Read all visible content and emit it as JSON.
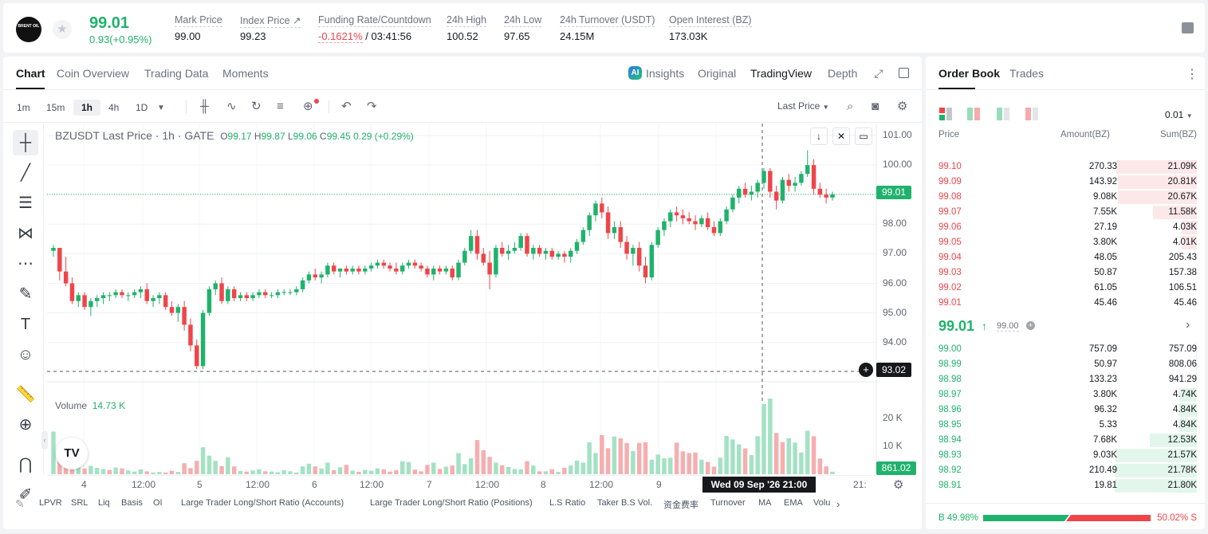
{
  "header": {
    "logo_text": "BRENT OIL",
    "price": "99.01",
    "change": "0.93(+0.95%)",
    "stats": [
      {
        "label": "Mark Price",
        "value": "99.00"
      },
      {
        "label": "Index Price ↗",
        "value": "99.23"
      },
      {
        "label": "Funding Rate/Countdown",
        "value_neg": "-0.1621%",
        "value": "/ 03:41:56"
      },
      {
        "label": "24h High",
        "value": "100.52"
      },
      {
        "label": "24h Low",
        "value": "97.65"
      },
      {
        "label": "24h Turnover (USDT)",
        "value": "24.15M"
      },
      {
        "label": "Open Interest (BZ)",
        "value": "173.03K"
      }
    ]
  },
  "chart_tabs": [
    "Chart",
    "Coin Overview",
    "Trading Data",
    "Moments"
  ],
  "view_tabs": {
    "insights": "Insights",
    "original": "Original",
    "tradingview": "TradingView",
    "depth": "Depth"
  },
  "timeframes": [
    "1m",
    "15m",
    "1h",
    "4h",
    "1D"
  ],
  "price_type": "Last Price",
  "legend": {
    "symbol": "BZUSDT Last Price · 1h · GATE",
    "o_label": "O",
    "o": "99.17",
    "h_label": "H",
    "h": "99.87",
    "l_label": "L",
    "l": "99.06",
    "c_label": "C",
    "c": "99.45",
    "chg": "0.29 (+0.29%)"
  },
  "volume_legend": {
    "label": "Volume",
    "value": "14.73 K"
  },
  "price_axis": [
    "101.00",
    "100.00",
    "99.00",
    "98.00",
    "97.00",
    "96.00",
    "95.00",
    "94.00"
  ],
  "volume_axis": [
    "20 K",
    "10 K"
  ],
  "last_price_tag": "99.01",
  "cross_price_tag": "93.02",
  "volume_tag": "861.02",
  "time_axis": [
    "4",
    "12:00",
    "5",
    "12:00",
    "6",
    "12:00",
    "7",
    "12:00",
    "8",
    "12:00",
    "9",
    "12:00",
    "21:"
  ],
  "cross_time": "Wed 09 Sep '26   21:00",
  "indicators": [
    "LPVR",
    "SRL",
    "Liq",
    "Basis",
    "OI",
    "Large Trader Long/Short Ratio (Accounts)",
    "Large Trader Long/Short Ratio (Positions)",
    "L.S Ratio",
    "Taker B.S Vol.",
    "资金费率",
    "Turnover",
    "MA",
    "EMA",
    "Volu"
  ],
  "orderbook": {
    "tabs": [
      "Order Book",
      "Trades"
    ],
    "tick_size": "0.01",
    "cols": [
      "Price",
      "Amount(BZ)",
      "Sum(BZ)"
    ],
    "asks": [
      {
        "p": "99.10",
        "a": "270.33",
        "s": "21.09K",
        "d": 0.97
      },
      {
        "p": "99.09",
        "a": "143.92",
        "s": "20.81K",
        "d": 0.955
      },
      {
        "p": "99.08",
        "a": "9.08K",
        "s": "20.67K",
        "d": 0.95
      },
      {
        "p": "99.07",
        "a": "7.55K",
        "s": "11.58K",
        "d": 0.53
      },
      {
        "p": "99.06",
        "a": "27.19",
        "s": "4.03K",
        "d": 0.185
      },
      {
        "p": "99.05",
        "a": "3.80K",
        "s": "4.01K",
        "d": 0.184
      },
      {
        "p": "99.04",
        "a": "48.05",
        "s": "205.43",
        "d": 0
      },
      {
        "p": "99.03",
        "a": "50.87",
        "s": "157.38",
        "d": 0
      },
      {
        "p": "99.02",
        "a": "61.05",
        "s": "106.51",
        "d": 0
      },
      {
        "p": "99.01",
        "a": "45.46",
        "s": "45.46",
        "d": 0
      }
    ],
    "mid_price": "99.01",
    "mid_mark": "99.00",
    "bids": [
      {
        "p": "99.00",
        "a": "757.09",
        "s": "757.09",
        "d": 0.01
      },
      {
        "p": "98.99",
        "a": "50.97",
        "s": "808.06",
        "d": 0.01
      },
      {
        "p": "98.98",
        "a": "133.23",
        "s": "941.29",
        "d": 0.01
      },
      {
        "p": "98.97",
        "a": "3.80K",
        "s": "4.74K",
        "d": 0.215
      },
      {
        "p": "98.96",
        "a": "96.32",
        "s": "4.84K",
        "d": 0.22
      },
      {
        "p": "98.95",
        "a": "5.33",
        "s": "4.84K",
        "d": 0.22
      },
      {
        "p": "98.94",
        "a": "7.68K",
        "s": "12.53K",
        "d": 0.57
      },
      {
        "p": "98.93",
        "a": "9.03K",
        "s": "21.57K",
        "d": 0.985
      },
      {
        "p": "98.92",
        "a": "210.49",
        "s": "21.78K",
        "d": 0.99
      },
      {
        "p": "98.91",
        "a": "19.81",
        "s": "21.80K",
        "d": 0.99
      }
    ],
    "buy_pct": "49.98%",
    "sell_pct": "50.02%",
    "buy_label": "B",
    "sell_label": "S",
    "buy_ratio": 0.4998
  },
  "colors": {
    "up": "#20b26c",
    "down": "#ef454a"
  },
  "chart_data": {
    "type": "candlestick",
    "ylim": [
      93.0,
      101.0
    ],
    "candles": [
      [
        97.1,
        97.3,
        96.9,
        97.2
      ],
      [
        97.2,
        97.2,
        96.1,
        96.4
      ],
      [
        96.4,
        96.9,
        95.9,
        96.0
      ],
      [
        96.0,
        96.2,
        95.3,
        95.4
      ],
      [
        95.4,
        95.7,
        95.2,
        95.6
      ],
      [
        95.6,
        95.7,
        95.1,
        95.2
      ],
      [
        95.2,
        95.5,
        94.9,
        95.4
      ],
      [
        95.4,
        95.6,
        95.2,
        95.5
      ],
      [
        95.5,
        95.7,
        95.3,
        95.6
      ],
      [
        95.6,
        95.7,
        95.4,
        95.6
      ],
      [
        95.6,
        95.8,
        95.5,
        95.7
      ],
      [
        95.7,
        95.8,
        95.5,
        95.6
      ],
      [
        95.6,
        95.7,
        95.4,
        95.6
      ],
      [
        95.6,
        95.8,
        95.5,
        95.7
      ],
      [
        95.7,
        95.9,
        95.5,
        95.8
      ],
      [
        95.8,
        96.0,
        95.3,
        95.4
      ],
      [
        95.4,
        95.6,
        95.2,
        95.5
      ],
      [
        95.5,
        95.7,
        95.3,
        95.6
      ],
      [
        95.6,
        95.7,
        95.1,
        95.2
      ],
      [
        95.2,
        95.4,
        94.9,
        95.0
      ],
      [
        95.0,
        95.3,
        94.7,
        95.2
      ],
      [
        95.2,
        95.4,
        94.4,
        94.6
      ],
      [
        94.6,
        94.8,
        93.7,
        93.9
      ],
      [
        93.9,
        94.1,
        93.1,
        93.2
      ],
      [
        93.2,
        95.1,
        93.1,
        95.0
      ],
      [
        95.0,
        95.9,
        94.9,
        95.8
      ],
      [
        95.8,
        96.1,
        95.6,
        96.0
      ],
      [
        96.0,
        96.2,
        95.3,
        95.4
      ],
      [
        95.4,
        95.9,
        95.3,
        95.8
      ],
      [
        95.8,
        95.9,
        95.4,
        95.5
      ],
      [
        95.5,
        95.7,
        95.4,
        95.6
      ],
      [
        95.6,
        95.7,
        95.4,
        95.5
      ],
      [
        95.5,
        95.7,
        95.4,
        95.6
      ],
      [
        95.6,
        95.8,
        95.5,
        95.7
      ],
      [
        95.7,
        95.8,
        95.5,
        95.6
      ],
      [
        95.6,
        95.7,
        95.5,
        95.6
      ],
      [
        95.6,
        95.8,
        95.5,
        95.7
      ],
      [
        95.7,
        95.8,
        95.6,
        95.7
      ],
      [
        95.7,
        95.8,
        95.6,
        95.7
      ],
      [
        95.7,
        95.9,
        95.6,
        95.8
      ],
      [
        95.8,
        96.2,
        95.7,
        96.1
      ],
      [
        96.1,
        96.4,
        96.0,
        96.3
      ],
      [
        96.3,
        96.5,
        96.1,
        96.2
      ],
      [
        96.2,
        96.4,
        96.0,
        96.3
      ],
      [
        96.3,
        96.7,
        96.2,
        96.6
      ],
      [
        96.6,
        96.7,
        96.3,
        96.4
      ],
      [
        96.4,
        96.5,
        96.2,
        96.5
      ],
      [
        96.5,
        96.6,
        96.3,
        96.4
      ],
      [
        96.4,
        96.6,
        96.3,
        96.5
      ],
      [
        96.5,
        96.6,
        96.3,
        96.4
      ],
      [
        96.4,
        96.6,
        96.3,
        96.5
      ],
      [
        96.5,
        96.7,
        96.4,
        96.6
      ],
      [
        96.6,
        96.8,
        96.5,
        96.7
      ],
      [
        96.7,
        96.8,
        96.5,
        96.6
      ],
      [
        96.6,
        96.7,
        96.4,
        96.5
      ],
      [
        96.5,
        96.7,
        96.3,
        96.4
      ],
      [
        96.4,
        96.7,
        96.3,
        96.6
      ],
      [
        96.6,
        96.8,
        96.5,
        96.7
      ],
      [
        96.7,
        96.8,
        96.5,
        96.6
      ],
      [
        96.6,
        96.7,
        96.4,
        96.5
      ],
      [
        96.5,
        96.6,
        96.2,
        96.3
      ],
      [
        96.3,
        96.6,
        96.1,
        96.5
      ],
      [
        96.5,
        96.6,
        96.3,
        96.4
      ],
      [
        96.4,
        96.6,
        96.3,
        96.5
      ],
      [
        96.5,
        96.6,
        96.1,
        96.2
      ],
      [
        96.2,
        96.8,
        96.1,
        96.7
      ],
      [
        96.7,
        97.2,
        96.6,
        97.1
      ],
      [
        97.1,
        97.8,
        97.0,
        97.6
      ],
      [
        97.6,
        97.8,
        96.8,
        97.0
      ],
      [
        97.0,
        97.2,
        96.6,
        96.7
      ],
      [
        96.7,
        97.1,
        95.8,
        96.3
      ],
      [
        96.3,
        97.3,
        96.2,
        97.2
      ],
      [
        97.2,
        97.4,
        96.9,
        97.0
      ],
      [
        97.0,
        97.3,
        96.8,
        97.1
      ],
      [
        97.1,
        97.4,
        97.0,
        97.2
      ],
      [
        97.2,
        97.7,
        97.1,
        97.6
      ],
      [
        97.6,
        97.7,
        96.9,
        97.0
      ],
      [
        97.0,
        97.3,
        96.8,
        97.2
      ],
      [
        97.2,
        97.3,
        96.9,
        97.0
      ],
      [
        97.0,
        97.2,
        96.8,
        97.1
      ],
      [
        97.1,
        97.2,
        96.8,
        96.9
      ],
      [
        96.9,
        97.1,
        96.8,
        97.0
      ],
      [
        97.0,
        97.1,
        96.7,
        96.9
      ],
      [
        96.9,
        97.2,
        96.7,
        97.1
      ],
      [
        97.1,
        97.5,
        97.0,
        97.4
      ],
      [
        97.4,
        97.9,
        97.3,
        97.8
      ],
      [
        97.8,
        98.4,
        97.6,
        98.3
      ],
      [
        98.3,
        98.8,
        98.1,
        98.7
      ],
      [
        98.7,
        98.9,
        98.2,
        98.4
      ],
      [
        98.4,
        98.6,
        97.5,
        97.7
      ],
      [
        97.7,
        98.1,
        97.5,
        97.9
      ],
      [
        97.9,
        98.1,
        97.2,
        97.4
      ],
      [
        97.4,
        97.6,
        96.8,
        97.0
      ],
      [
        97.0,
        97.3,
        96.6,
        97.2
      ],
      [
        97.2,
        97.4,
        96.4,
        96.6
      ],
      [
        96.6,
        96.9,
        96.0,
        96.2
      ],
      [
        96.2,
        97.4,
        96.1,
        97.3
      ],
      [
        97.3,
        97.9,
        97.2,
        97.8
      ],
      [
        97.8,
        98.2,
        97.6,
        98.1
      ],
      [
        98.1,
        98.5,
        97.9,
        98.4
      ],
      [
        98.4,
        98.6,
        98.1,
        98.3
      ],
      [
        98.3,
        98.5,
        98.0,
        98.2
      ],
      [
        98.2,
        98.4,
        98.0,
        98.1
      ],
      [
        98.1,
        98.3,
        97.8,
        98.0
      ],
      [
        98.0,
        98.3,
        97.9,
        98.2
      ],
      [
        98.2,
        98.4,
        97.8,
        97.9
      ],
      [
        97.9,
        98.1,
        97.6,
        97.7
      ],
      [
        97.7,
        98.2,
        97.6,
        98.1
      ],
      [
        98.1,
        98.6,
        98.0,
        98.5
      ],
      [
        98.5,
        99.0,
        98.4,
        98.9
      ],
      [
        98.9,
        99.3,
        98.7,
        99.2
      ],
      [
        99.2,
        99.4,
        98.9,
        99.0
      ],
      [
        99.0,
        99.3,
        98.8,
        99.1
      ],
      [
        99.1,
        99.5,
        98.9,
        99.4
      ],
      [
        99.4,
        99.9,
        99.2,
        99.8
      ],
      [
        99.8,
        99.9,
        98.9,
        99.1
      ],
      [
        99.1,
        99.3,
        98.5,
        98.8
      ],
      [
        98.8,
        99.6,
        98.7,
        99.5
      ],
      [
        99.5,
        99.7,
        99.1,
        99.3
      ],
      [
        99.3,
        99.6,
        99.1,
        99.4
      ],
      [
        99.4,
        99.8,
        99.3,
        99.7
      ],
      [
        99.7,
        100.5,
        99.6,
        100.0
      ],
      [
        100.0,
        100.2,
        99.0,
        99.2
      ],
      [
        99.2,
        99.4,
        98.9,
        99.0
      ],
      [
        99.0,
        99.2,
        98.7,
        98.9
      ],
      [
        98.9,
        99.1,
        98.8,
        99.01
      ]
    ],
    "volumes": [
      [
        14730,
        1
      ],
      [
        7000,
        0
      ],
      [
        4800,
        0
      ],
      [
        3200,
        0
      ],
      [
        2400,
        1
      ],
      [
        2000,
        0
      ],
      [
        2900,
        1
      ],
      [
        2200,
        1
      ],
      [
        1800,
        1
      ],
      [
        1500,
        0
      ],
      [
        2300,
        1
      ],
      [
        2000,
        0
      ],
      [
        1300,
        1
      ],
      [
        900,
        1
      ],
      [
        1700,
        1
      ],
      [
        1000,
        0
      ],
      [
        600,
        1
      ],
      [
        800,
        1
      ],
      [
        600,
        0
      ],
      [
        1200,
        0
      ],
      [
        800,
        1
      ],
      [
        3800,
        0
      ],
      [
        2100,
        0
      ],
      [
        4600,
        0
      ],
      [
        9300,
        1
      ],
      [
        6400,
        1
      ],
      [
        4600,
        1
      ],
      [
        2800,
        0
      ],
      [
        5800,
        1
      ],
      [
        2700,
        0
      ],
      [
        1100,
        1
      ],
      [
        900,
        0
      ],
      [
        1300,
        1
      ],
      [
        1700,
        1
      ],
      [
        1000,
        0
      ],
      [
        900,
        1
      ],
      [
        700,
        1
      ],
      [
        1400,
        1
      ],
      [
        1000,
        1
      ],
      [
        600,
        1
      ],
      [
        2700,
        1
      ],
      [
        3600,
        1
      ],
      [
        2700,
        0
      ],
      [
        2000,
        1
      ],
      [
        4000,
        1
      ],
      [
        1400,
        0
      ],
      [
        2400,
        1
      ],
      [
        3200,
        0
      ],
      [
        1200,
        1
      ],
      [
        800,
        0
      ],
      [
        1500,
        1
      ],
      [
        1200,
        1
      ],
      [
        2000,
        1
      ],
      [
        1700,
        0
      ],
      [
        900,
        0
      ],
      [
        1400,
        0
      ],
      [
        4500,
        1
      ],
      [
        4200,
        1
      ],
      [
        1600,
        0
      ],
      [
        1000,
        0
      ],
      [
        3200,
        0
      ],
      [
        4000,
        1
      ],
      [
        1800,
        0
      ],
      [
        2600,
        1
      ],
      [
        3000,
        0
      ],
      [
        7300,
        1
      ],
      [
        3500,
        1
      ],
      [
        5500,
        1
      ],
      [
        11800,
        0
      ],
      [
        8300,
        0
      ],
      [
        6000,
        0
      ],
      [
        4000,
        1
      ],
      [
        3100,
        0
      ],
      [
        2500,
        1
      ],
      [
        1800,
        1
      ],
      [
        1700,
        1
      ],
      [
        4500,
        0
      ],
      [
        3000,
        1
      ],
      [
        1000,
        0
      ],
      [
        1000,
        1
      ],
      [
        1700,
        0
      ],
      [
        800,
        1
      ],
      [
        2200,
        0
      ],
      [
        3000,
        1
      ],
      [
        4700,
        1
      ],
      [
        4000,
        1
      ],
      [
        11000,
        1
      ],
      [
        7300,
        1
      ],
      [
        13500,
        0
      ],
      [
        9000,
        0
      ],
      [
        13000,
        1
      ],
      [
        12400,
        0
      ],
      [
        10800,
        0
      ],
      [
        8000,
        1
      ],
      [
        10800,
        0
      ],
      [
        11000,
        0
      ],
      [
        5000,
        1
      ],
      [
        6800,
        1
      ],
      [
        5500,
        1
      ],
      [
        5700,
        1
      ],
      [
        10900,
        0
      ],
      [
        7900,
        0
      ],
      [
        7300,
        0
      ],
      [
        7500,
        0
      ],
      [
        5000,
        1
      ],
      [
        4200,
        0
      ],
      [
        2600,
        0
      ],
      [
        5700,
        1
      ],
      [
        13200,
        1
      ],
      [
        12000,
        1
      ],
      [
        10300,
        1
      ],
      [
        8900,
        0
      ],
      [
        6600,
        1
      ],
      [
        13100,
        1
      ],
      [
        24200,
        1
      ],
      [
        26100,
        1
      ],
      [
        14200,
        0
      ],
      [
        11100,
        0
      ],
      [
        12400,
        1
      ],
      [
        10900,
        1
      ],
      [
        7500,
        1
      ],
      [
        15000,
        1
      ],
      [
        13100,
        0
      ],
      [
        5400,
        0
      ],
      [
        2700,
        0
      ],
      [
        861,
        1
      ]
    ]
  }
}
